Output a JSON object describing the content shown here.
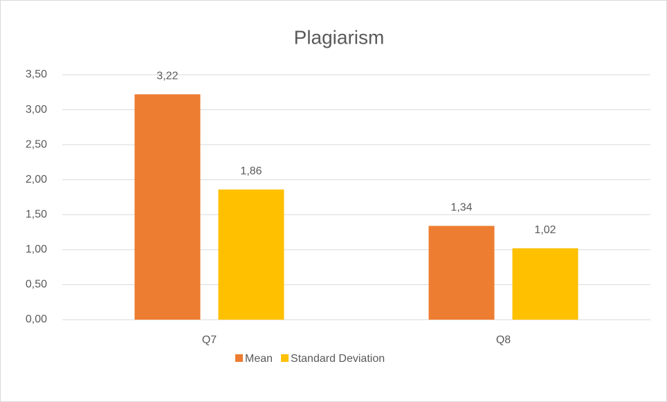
{
  "chart_data": {
    "type": "bar",
    "title": "Plagiarism",
    "categories": [
      "Q7",
      "Q8"
    ],
    "series": [
      {
        "name": "Mean",
        "color": "#ed7d31",
        "values": [
          3.22,
          1.34
        ],
        "value_labels": [
          "3,22",
          "1,34"
        ]
      },
      {
        "name": "Standard Deviation",
        "color": "#ffc000",
        "values": [
          1.86,
          1.02
        ],
        "value_labels": [
          "1,86",
          "1,02"
        ]
      }
    ],
    "ylim": [
      0,
      3.5
    ],
    "yticks": [
      {
        "value": 0,
        "label": "0,00"
      },
      {
        "value": 0.5,
        "label": "0,50"
      },
      {
        "value": 1,
        "label": "1,00"
      },
      {
        "value": 1.5,
        "label": "1,50"
      },
      {
        "value": 2,
        "label": "2,00"
      },
      {
        "value": 2.5,
        "label": "2,50"
      },
      {
        "value": 3,
        "label": "3,00"
      },
      {
        "value": 3.5,
        "label": "3,50"
      }
    ],
    "grid": true,
    "legend": "bottom"
  }
}
